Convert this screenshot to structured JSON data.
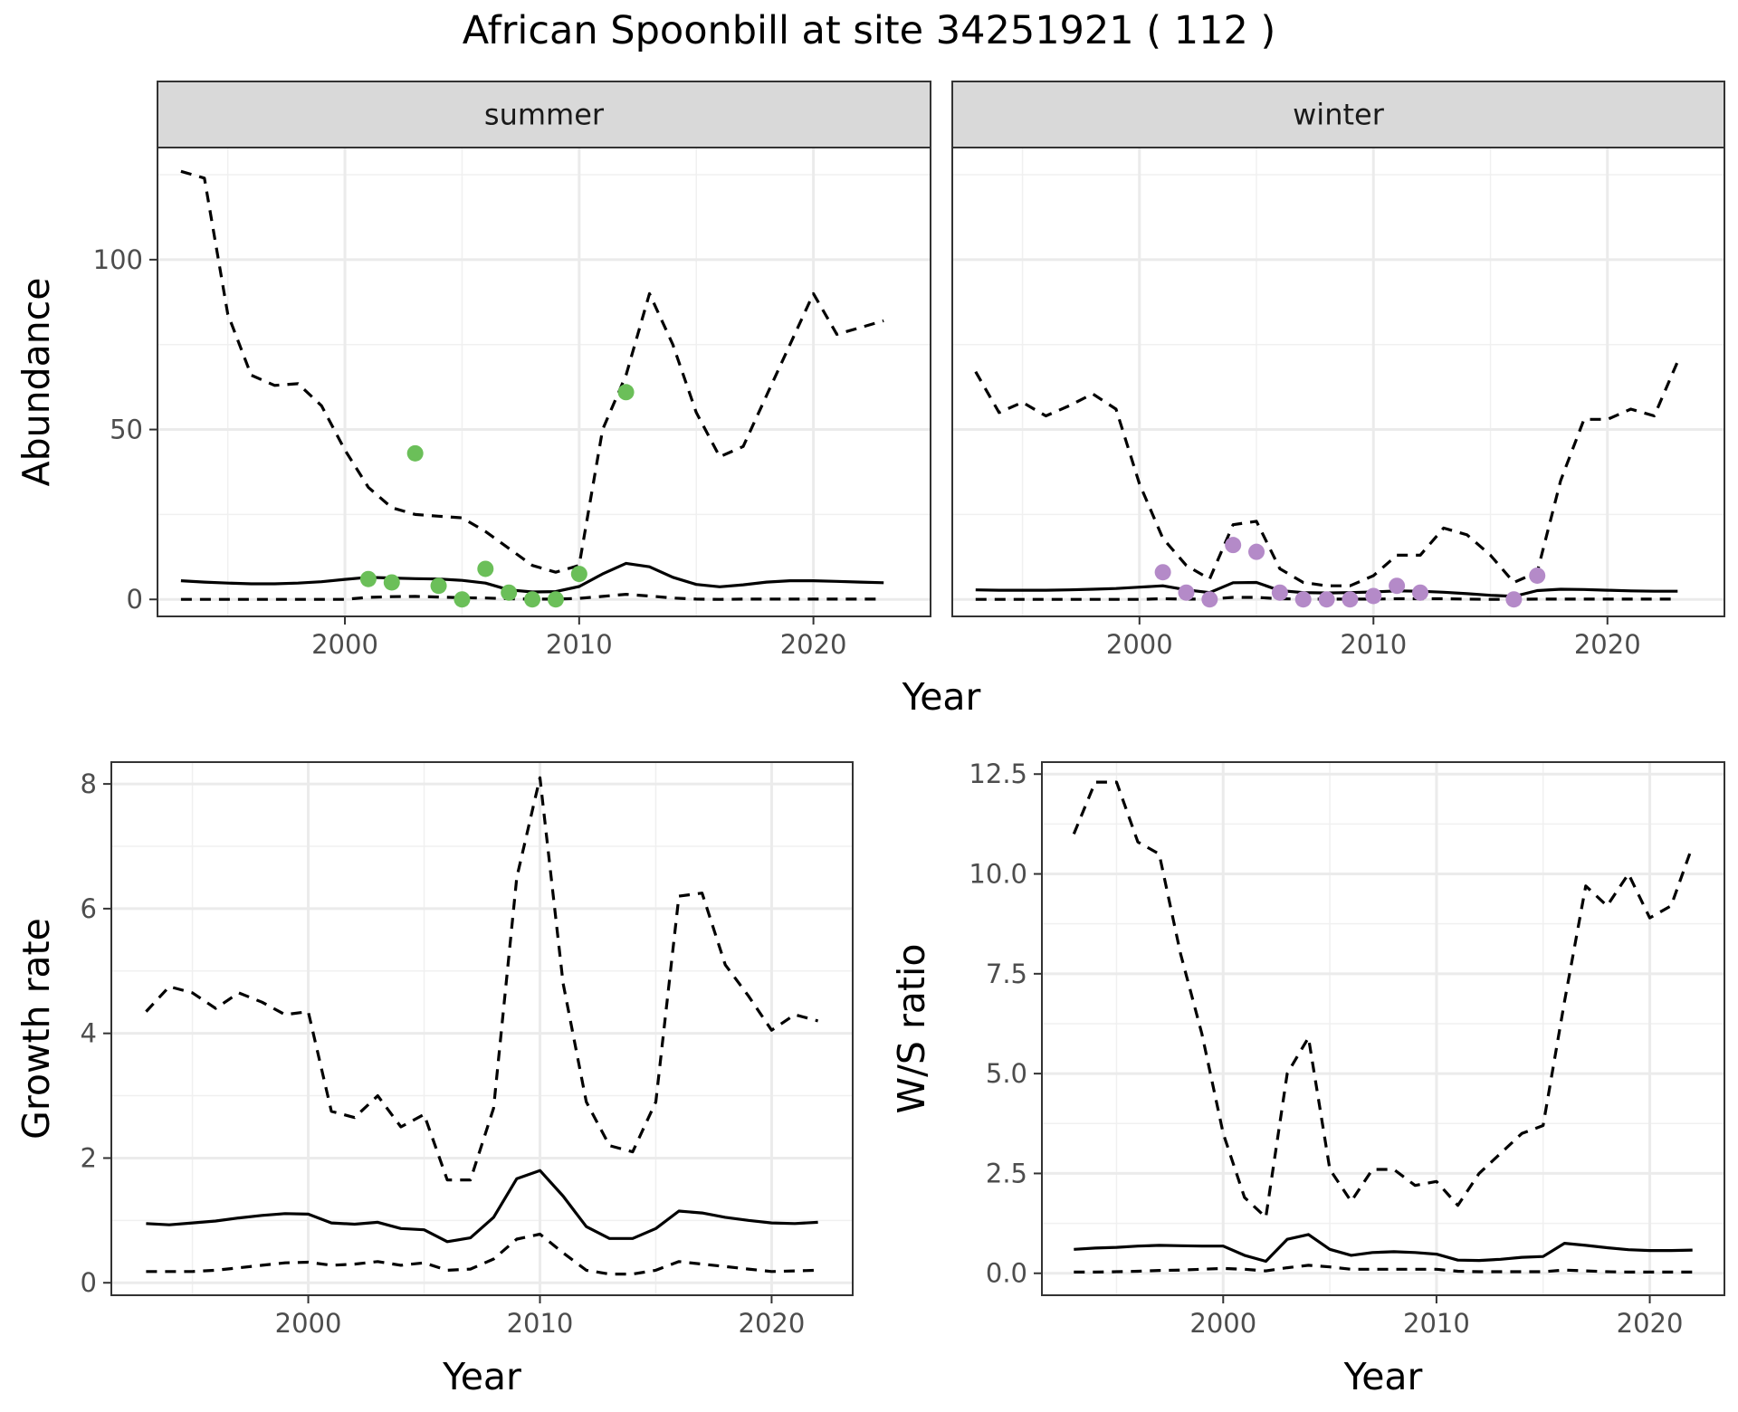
{
  "title": "African Spoonbill at site 34251921 ( 112 )",
  "chart_data": [
    {
      "type": "line",
      "panel": "summer",
      "strip_label": "summer",
      "xlabel": "Year",
      "ylabel": "Abundance",
      "xlim": [
        1992,
        2025
      ],
      "ylim": [
        -5,
        133
      ],
      "xticks": [
        2000,
        2010,
        2020
      ],
      "yticks": [
        0,
        50,
        100
      ],
      "grid": true,
      "point_color": "#6bbf59",
      "x": [
        1993,
        1994,
        1995,
        1996,
        1997,
        1998,
        1999,
        2000,
        2001,
        2002,
        2003,
        2004,
        2005,
        2006,
        2007,
        2008,
        2009,
        2010,
        2011,
        2012,
        2013,
        2014,
        2015,
        2016,
        2017,
        2018,
        2019,
        2020,
        2021,
        2022,
        2023
      ],
      "series": [
        {
          "style": "solid",
          "values": [
            5.5,
            5.1,
            4.8,
            4.6,
            4.6,
            4.8,
            5.2,
            5.9,
            6.5,
            6.3,
            6.1,
            6.0,
            5.6,
            4.8,
            2.8,
            2.2,
            2.3,
            3.8,
            7.5,
            10.6,
            9.6,
            6.5,
            4.4,
            3.7,
            4.3,
            5.1,
            5.5,
            5.5,
            5.3,
            5.1,
            4.9
          ]
        },
        {
          "style": "dashed",
          "values": [
            126,
            124,
            84,
            66,
            63,
            63.5,
            57,
            44,
            33,
            27,
            25,
            24.5,
            24,
            20,
            15,
            10,
            8,
            10,
            50,
            66,
            90,
            75,
            55,
            42,
            45,
            60,
            75,
            90,
            78,
            80,
            82
          ]
        },
        {
          "style": "dashed",
          "values": [
            0,
            0,
            0,
            0,
            0,
            0,
            0,
            0,
            0.6,
            0.8,
            0.9,
            0.7,
            0.5,
            0.4,
            0.2,
            0.1,
            0.1,
            0.3,
            0.9,
            1.5,
            1.0,
            0.4,
            0.1,
            0.0,
            0.1,
            0.1,
            0.1,
            0.1,
            0.1,
            0.1,
            0.1
          ]
        }
      ],
      "points": {
        "x": [
          2001,
          2002,
          2003,
          2004,
          2005,
          2006,
          2007,
          2008,
          2009,
          2010,
          2012
        ],
        "y": [
          6,
          5,
          43,
          4,
          0,
          9,
          2,
          0,
          0,
          7.5,
          61
        ]
      }
    },
    {
      "type": "line",
      "panel": "winter",
      "strip_label": "winter",
      "xlabel": "Year",
      "ylabel": "Abundance",
      "xlim": [
        1992,
        2025
      ],
      "ylim": [
        -5,
        133
      ],
      "xticks": [
        2000,
        2010,
        2020
      ],
      "yticks": [
        0,
        50,
        100
      ],
      "grid": true,
      "point_color": "#b48ac8",
      "x": [
        1993,
        1994,
        1995,
        1996,
        1997,
        1998,
        1999,
        2000,
        2001,
        2002,
        2003,
        2004,
        2005,
        2006,
        2007,
        2008,
        2009,
        2010,
        2011,
        2012,
        2013,
        2014,
        2015,
        2016,
        2017,
        2018,
        2019,
        2020,
        2021,
        2022,
        2023
      ],
      "series": [
        {
          "style": "solid",
          "values": [
            2.8,
            2.7,
            2.7,
            2.7,
            2.8,
            3.0,
            3.2,
            3.6,
            4.0,
            2.8,
            2.0,
            4.9,
            5.0,
            2.6,
            2.0,
            1.9,
            2.0,
            2.2,
            2.5,
            2.4,
            2.1,
            1.7,
            1.2,
            0.9,
            2.6,
            3.0,
            2.9,
            2.7,
            2.5,
            2.4,
            2.4
          ]
        },
        {
          "style": "dashed",
          "values": [
            67,
            55,
            58,
            54,
            57,
            60.5,
            56,
            34,
            18,
            10,
            6,
            22,
            23,
            9,
            5,
            4,
            4,
            7,
            13,
            13,
            21,
            19,
            13,
            5,
            8,
            35,
            53,
            53,
            56,
            54,
            70
          ]
        },
        {
          "style": "dashed",
          "values": [
            0,
            0,
            0,
            0,
            0,
            0,
            0,
            0,
            0.2,
            0.1,
            0.1,
            0.6,
            0.6,
            0.2,
            0.1,
            0.1,
            0.1,
            0.1,
            0.2,
            0.2,
            0.2,
            0.1,
            0.0,
            0.0,
            0.1,
            0.1,
            0.1,
            0.1,
            0.1,
            0.1,
            0.1
          ]
        }
      ],
      "points": {
        "x": [
          2001,
          2002,
          2003,
          2004,
          2005,
          2006,
          2007,
          2008,
          2009,
          2010,
          2011,
          2012,
          2016,
          2017
        ],
        "y": [
          8,
          2,
          0,
          16,
          14,
          2,
          0,
          0,
          0,
          1,
          4,
          2,
          0,
          7
        ]
      }
    },
    {
      "type": "line",
      "panel": "growth",
      "xlabel": "Year",
      "ylabel": "Growth rate",
      "xlim": [
        1991.5,
        2023.5
      ],
      "ylim": [
        -0.2,
        8.35
      ],
      "xticks": [
        2000,
        2010,
        2020
      ],
      "yticks": [
        0,
        2,
        4,
        6,
        8
      ],
      "grid": true,
      "x": [
        1993,
        1994,
        1995,
        1996,
        1997,
        1998,
        1999,
        2000,
        2001,
        2002,
        2003,
        2004,
        2005,
        2006,
        2007,
        2008,
        2009,
        2010,
        2011,
        2012,
        2013,
        2014,
        2015,
        2016,
        2017,
        2018,
        2019,
        2020,
        2021,
        2022
      ],
      "series": [
        {
          "style": "solid",
          "values": [
            0.95,
            0.93,
            0.96,
            0.99,
            1.04,
            1.08,
            1.11,
            1.1,
            0.96,
            0.94,
            0.97,
            0.87,
            0.85,
            0.66,
            0.72,
            1.05,
            1.67,
            1.8,
            1.39,
            0.9,
            0.71,
            0.71,
            0.87,
            1.15,
            1.12,
            1.05,
            1.0,
            0.96,
            0.95,
            0.97
          ]
        },
        {
          "style": "dashed",
          "values": [
            4.35,
            4.75,
            4.65,
            4.4,
            4.65,
            4.5,
            4.3,
            4.35,
            2.75,
            2.65,
            3.0,
            2.5,
            2.7,
            1.65,
            1.65,
            2.8,
            6.5,
            8.1,
            4.8,
            2.9,
            2.2,
            2.1,
            2.9,
            6.2,
            6.25,
            5.1,
            4.6,
            4.05,
            4.3,
            4.2
          ]
        },
        {
          "style": "dashed",
          "values": [
            0.18,
            0.18,
            0.18,
            0.2,
            0.24,
            0.28,
            0.32,
            0.33,
            0.28,
            0.3,
            0.34,
            0.28,
            0.32,
            0.2,
            0.22,
            0.38,
            0.7,
            0.78,
            0.48,
            0.2,
            0.14,
            0.14,
            0.2,
            0.34,
            0.3,
            0.26,
            0.22,
            0.18,
            0.19,
            0.2
          ]
        }
      ]
    },
    {
      "type": "line",
      "panel": "ws_ratio",
      "xlabel": "Year",
      "ylabel": "W/S ratio",
      "xlim": [
        1991.5,
        2023.5
      ],
      "ylim": [
        -0.55,
        12.8
      ],
      "xticks": [
        2000,
        2010,
        2020
      ],
      "yticks": [
        0.0,
        2.5,
        5.0,
        7.5,
        10.0,
        12.5
      ],
      "ytick_labels": [
        "0.0",
        "2.5",
        "5.0",
        "7.5",
        "10.0",
        "12.5"
      ],
      "grid": true,
      "x": [
        1993,
        1994,
        1995,
        1996,
        1997,
        1998,
        1999,
        2000,
        2001,
        2002,
        2003,
        2004,
        2005,
        2006,
        2007,
        2008,
        2009,
        2010,
        2011,
        2012,
        2013,
        2014,
        2015,
        2016,
        2017,
        2018,
        2019,
        2020,
        2021,
        2022
      ],
      "series": [
        {
          "style": "solid",
          "values": [
            0.6,
            0.63,
            0.65,
            0.68,
            0.7,
            0.69,
            0.68,
            0.68,
            0.45,
            0.3,
            0.85,
            0.97,
            0.6,
            0.45,
            0.52,
            0.54,
            0.52,
            0.48,
            0.33,
            0.32,
            0.35,
            0.4,
            0.42,
            0.75,
            0.7,
            0.64,
            0.59,
            0.57,
            0.57,
            0.58
          ]
        },
        {
          "style": "dashed",
          "values": [
            11.0,
            12.3,
            12.3,
            10.8,
            10.5,
            8.0,
            6.0,
            3.5,
            1.9,
            1.4,
            5.0,
            5.9,
            2.6,
            1.8,
            2.6,
            2.6,
            2.2,
            2.3,
            1.7,
            2.5,
            3.0,
            3.5,
            3.7,
            6.8,
            9.7,
            9.2,
            10.0,
            8.9,
            9.2,
            10.7
          ]
        },
        {
          "style": "dashed",
          "values": [
            0.03,
            0.03,
            0.04,
            0.05,
            0.07,
            0.08,
            0.1,
            0.12,
            0.1,
            0.06,
            0.14,
            0.2,
            0.16,
            0.1,
            0.1,
            0.1,
            0.1,
            0.1,
            0.05,
            0.04,
            0.04,
            0.04,
            0.04,
            0.08,
            0.06,
            0.04,
            0.03,
            0.03,
            0.03,
            0.03
          ]
        }
      ]
    }
  ]
}
